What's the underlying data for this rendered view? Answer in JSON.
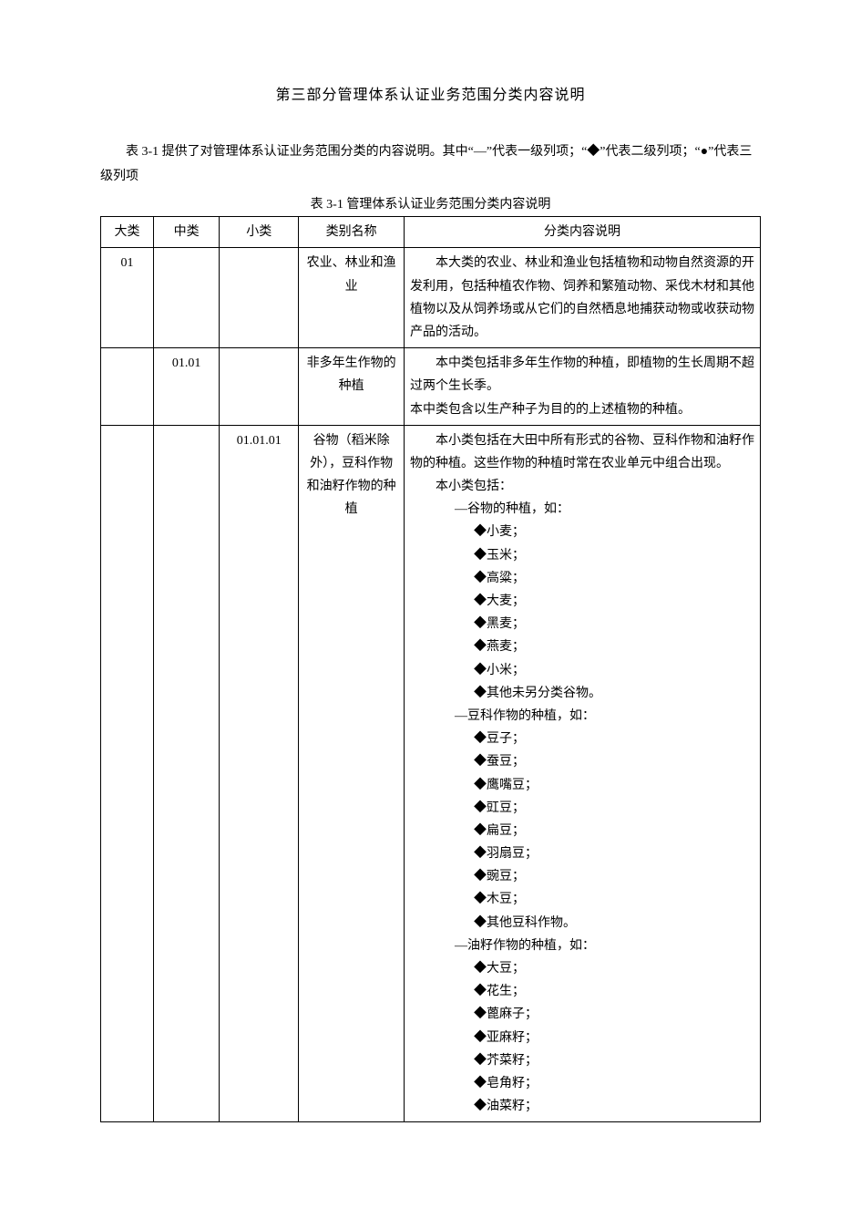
{
  "title": "第三部分管理体系认证业务范围分类内容说明",
  "intro": "表 3-1 提供了对管理体系认证业务范围分类的内容说明。其中“—”代表一级列项；“◆”代表二级列项；“●”代表三级列项",
  "table_caption": "表 3-1 管理体系认证业务范围分类内容说明",
  "headers": {
    "h1": "大类",
    "h2": "中类",
    "h3": "小类",
    "h4": "类别名称",
    "h5": "分类内容说明"
  },
  "rows": [
    {
      "c1": "01",
      "c2": "",
      "c3": "",
      "name": "农业、林业和渔业",
      "desc_paras": [
        "本大类的农业、林业和渔业包括植物和动物自然资源的开发利用，包括种植农作物、饲养和繁殖动物、采伐木材和其他植物以及从饲养场或从它们的自然栖息地捕获动物或收获动物产品的活动。"
      ]
    },
    {
      "c1": "",
      "c2": "01.01",
      "c3": "",
      "name": "非多年生作物的种植",
      "desc_paras": [
        "本中类包括非多年生作物的种植，即植物的生长周期不超过两个生长季。",
        "本中类包含以生产种子为目的的上述植物的种植。"
      ]
    },
    {
      "c1": "",
      "c2": "",
      "c3": "01.01.01",
      "name": "谷物（稻米除外），豆科作物和油籽作物的种植",
      "desc_paras": [
        "本小类包括在大田中所有形式的谷物、豆科作物和油籽作物的种植。这些作物的种植时常在农业单元中组合出现。"
      ],
      "list_label": "本小类包括：",
      "groups": [
        {
          "head": "—谷物的种植，如：",
          "items": [
            "◆小麦；",
            "◆玉米；",
            "◆高粱；",
            "◆大麦；",
            "◆黑麦；",
            "◆燕麦；",
            "◆小米；",
            "◆其他未另分类谷物。"
          ]
        },
        {
          "head": "—豆科作物的种植，如：",
          "items": [
            "◆豆子；",
            "◆蚕豆；",
            "◆鹰嘴豆；",
            "◆豇豆；",
            "◆扁豆；",
            "◆羽扇豆；",
            "◆豌豆；",
            "◆木豆；",
            "◆其他豆科作物。"
          ]
        },
        {
          "head": "—油籽作物的种植，如：",
          "items": [
            "◆大豆；",
            "◆花生；",
            "◆蓖麻子；",
            "◆亚麻籽；",
            "◆芥菜籽；",
            "◆皂角籽；",
            "◆油菜籽；"
          ]
        }
      ]
    }
  ],
  "colors": {
    "background": "#ffffff",
    "text": "#000000",
    "border": "#000000"
  },
  "fonts": {
    "body_family": "SimSun",
    "body_size_pt": 10.5,
    "title_size_pt": 12
  }
}
